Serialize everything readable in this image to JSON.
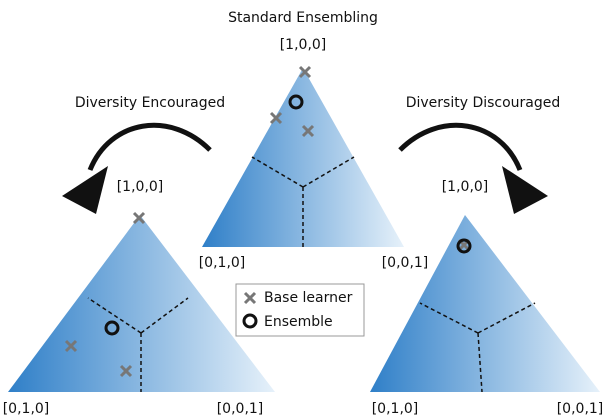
{
  "title": "Standard Ensembling",
  "left_title": "Diversity Encouraged",
  "right_title": "Diversity Discouraged",
  "triangles": [
    {
      "top": "[1,0,0]",
      "left": "[0,1,0]",
      "right": "[0,0,1]"
    },
    {
      "top": "[1,0,0]",
      "left": "[0,1,0]",
      "right": "[0,0,1]"
    },
    {
      "top": "[1,0,0]",
      "left": "[0,1,0]",
      "right": "[0,0,1]"
    }
  ],
  "legend": {
    "items": [
      "Base learner",
      "Ensemble"
    ]
  }
}
